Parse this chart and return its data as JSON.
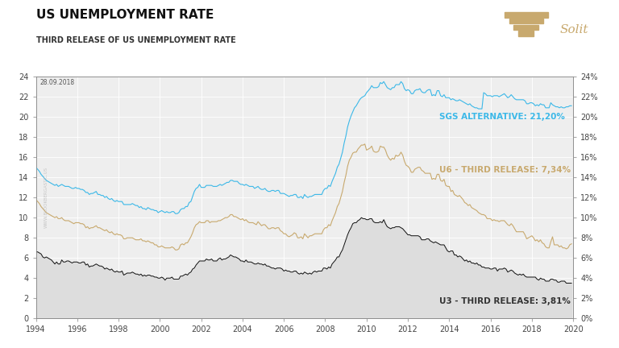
{
  "title": "US UNEMPLOYMENT RATE",
  "subtitle": "THIRD RELEASE OF US UNEMPLOYMENT RATE",
  "date_label": "28.09.2018",
  "watermark": "WWW.BLOOKBERGASTIC.US",
  "brand": "Solit",
  "fig_bg_color": "#ffffff",
  "plot_bg_color": "#eeeeee",
  "grid_color": "#ffffff",
  "ylim_left": [
    0,
    24
  ],
  "ylim_right": [
    0,
    24
  ],
  "yticks_left": [
    0,
    2,
    4,
    6,
    8,
    10,
    12,
    14,
    16,
    18,
    20,
    22,
    24
  ],
  "yticks_right": [
    0,
    2,
    4,
    6,
    8,
    10,
    12,
    14,
    16,
    18,
    20,
    22,
    24
  ],
  "ytick_labels_right": [
    "0%",
    "2%",
    "4%",
    "6%",
    "8%",
    "10%",
    "12%",
    "14%",
    "16%",
    "18%",
    "20%",
    "22%",
    "24%"
  ],
  "xlim": [
    1994,
    2020
  ],
  "xticks": [
    1994,
    1996,
    1998,
    2000,
    2002,
    2004,
    2006,
    2008,
    2010,
    2012,
    2014,
    2016,
    2018,
    2020
  ],
  "sgs_color": "#3bb8e8",
  "u6_color": "#c8a96e",
  "u3_color": "#111111",
  "u3_fill_color": "#dddddd",
  "sgs_label": "SGS ALTERNATIVE: 21,20%",
  "u6_label": "U6 - THIRD RELEASE: 7,34%",
  "u3_label": "U3 - THIRD RELEASE: 3,81%"
}
